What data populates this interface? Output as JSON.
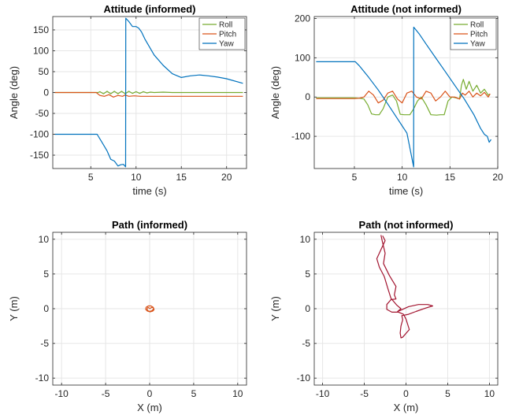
{
  "colors": {
    "roll": "#77ac30",
    "pitch": "#d95319",
    "yaw": "#0072bd",
    "path_informed": "#d95319",
    "path_not_informed": "#a2142f",
    "grid": "#e6e6e6",
    "axes": "#262626"
  },
  "chart_data": [
    {
      "type": "line",
      "title": "Attitude (informed)",
      "xlabel": "time (s)",
      "ylabel": "Angle (deg)",
      "xlim": [
        0.8,
        22.2
      ],
      "ylim": [
        -182,
        182
      ],
      "xticks": [
        5,
        10,
        15,
        20
      ],
      "yticks": [
        -150,
        -100,
        -50,
        0,
        50,
        100,
        150
      ],
      "grid": true,
      "legend": "top-right",
      "series": [
        {
          "name": "Roll",
          "x": [
            1,
            5.8,
            6.0,
            6.4,
            6.8,
            7.2,
            7.6,
            8.0,
            8.4,
            8.8,
            9.2,
            9.6,
            10.0,
            10.4,
            10.8,
            11.2,
            11.6,
            12,
            13,
            14,
            16,
            18,
            20,
            21.8
          ],
          "y": [
            0,
            0,
            2,
            -3,
            3,
            -3,
            3,
            -3,
            3,
            -3,
            3,
            -2,
            2,
            -2,
            2,
            -1,
            1,
            0,
            1,
            0,
            0,
            0,
            0,
            0
          ]
        },
        {
          "name": "Pitch",
          "x": [
            1,
            5.6,
            6.0,
            6.5,
            7.0,
            7.5,
            8.0,
            8.5,
            8.8,
            9.2,
            9.8,
            10.5,
            12,
            14,
            16,
            18,
            20,
            21.8
          ],
          "y": [
            0,
            0,
            -7,
            -9,
            -5,
            -11,
            -7,
            -9,
            -6,
            -9,
            -8,
            -9,
            -9,
            -9,
            -9,
            -9,
            -9,
            -9
          ]
        },
        {
          "name": "Yaw",
          "x": [
            1,
            5.4,
            5.7,
            6.2,
            6.8,
            7.2,
            7.6,
            8.0,
            8.3,
            8.6,
            8.85,
            8.86,
            9.2,
            9.6,
            10.0,
            10.3,
            10.6,
            11.0,
            12.0,
            13.0,
            14.0,
            15.0,
            16.0,
            17.0,
            18.0,
            19.0,
            20.0,
            21.8
          ],
          "y": [
            -100,
            -100,
            -100,
            -118,
            -140,
            -160,
            -164,
            -176,
            -173,
            -172,
            -178,
            178,
            170,
            158,
            158,
            154,
            145,
            127,
            90,
            65,
            45,
            36,
            40,
            42,
            40,
            37,
            33,
            22
          ]
        }
      ]
    },
    {
      "type": "line",
      "title": "Attitude (not informed)",
      "xlabel": "time (s)",
      "ylabel": "Angle (deg)",
      "xlim": [
        0.8,
        20.0
      ],
      "ylim": [
        -182,
        205
      ],
      "xticks": [
        5,
        10,
        15,
        20
      ],
      "yticks": [
        -100,
        0,
        100,
        200
      ],
      "grid": true,
      "legend": "top-right",
      "series": [
        {
          "name": "Roll",
          "x": [
            1,
            5.0,
            5.5,
            6.0,
            6.4,
            6.8,
            7.2,
            7.6,
            8.0,
            8.5,
            9.0,
            9.4,
            9.8,
            10.2,
            10.8,
            11.2,
            11.6,
            12.0,
            12.5,
            13.0,
            13.6,
            14.0,
            14.4,
            14.8,
            15.2,
            15.6,
            16.0,
            16.2,
            16.4,
            16.7,
            17.0,
            17.4,
            17.8,
            18.2,
            18.6,
            19.0,
            19.2
          ],
          "y": [
            -2,
            -2,
            -3,
            -5,
            -20,
            -43,
            -45,
            -45,
            -30,
            0,
            5,
            -10,
            -44,
            -45,
            -45,
            -30,
            -10,
            0,
            -20,
            -45,
            -46,
            -45,
            -45,
            -10,
            0,
            -2,
            -5,
            30,
            45,
            20,
            40,
            15,
            30,
            10,
            20,
            5,
            8
          ]
        },
        {
          "name": "Pitch",
          "x": [
            1,
            5.0,
            5.5,
            6.0,
            6.5,
            7.0,
            7.5,
            8.0,
            8.5,
            9.0,
            9.5,
            10.0,
            10.5,
            11.0,
            11.5,
            12.0,
            12.5,
            13.0,
            13.5,
            14.0,
            14.5,
            15.0,
            15.5,
            16.0,
            16.3,
            16.6,
            17.0,
            17.4,
            17.8,
            18.2,
            18.6,
            19.0,
            19.2
          ],
          "y": [
            -4,
            -4,
            -3,
            0,
            15,
            5,
            -15,
            -8,
            10,
            15,
            -5,
            -15,
            10,
            15,
            0,
            -5,
            15,
            10,
            -10,
            0,
            15,
            0,
            0,
            -5,
            10,
            5,
            15,
            0,
            10,
            3,
            12,
            0,
            8
          ]
        },
        {
          "name": "Yaw",
          "x": [
            1,
            5.1,
            5.5,
            6.5,
            7.5,
            8.5,
            9.5,
            10.5,
            11.2,
            11.21,
            11.8,
            12.5,
            13.5,
            14.5,
            15.5,
            16.5,
            17.5,
            18.2,
            18.6,
            18.9,
            19.1,
            19.3
          ],
          "y": [
            90,
            90,
            80,
            50,
            18,
            -18,
            -55,
            -92,
            -178,
            178,
            160,
            135,
            100,
            65,
            30,
            -5,
            -45,
            -80,
            -95,
            -100,
            -115,
            -108
          ]
        }
      ]
    },
    {
      "type": "line",
      "title": "Path (informed)",
      "xlabel": "X (m)",
      "ylabel": "Y (m)",
      "xlim": [
        -11,
        11
      ],
      "ylim": [
        -11,
        11
      ],
      "xticks": [
        -10,
        -5,
        0,
        5,
        10
      ],
      "yticks": [
        -10,
        -5,
        0,
        5,
        10
      ],
      "grid": true,
      "series": [
        {
          "x": [
            0.0,
            0.25,
            0.45,
            0.5,
            0.35,
            0.05,
            -0.25,
            -0.45,
            -0.4,
            -0.15,
            0.15,
            0.4,
            0.45,
            0.25,
            0.0,
            -0.2,
            -0.3,
            -0.2,
            0.0
          ],
          "y": [
            0.0,
            0.2,
            0.1,
            -0.15,
            -0.35,
            -0.45,
            -0.35,
            -0.1,
            0.2,
            0.4,
            0.4,
            0.2,
            -0.05,
            -0.3,
            -0.4,
            -0.3,
            -0.05,
            0.2,
            0.05
          ]
        }
      ]
    },
    {
      "type": "line",
      "title": "Path (not informed)",
      "xlabel": "X (m)",
      "ylabel": "Y (m)",
      "xlim": [
        -11,
        11
      ],
      "ylim": [
        -11,
        11
      ],
      "xticks": [
        -10,
        -5,
        0,
        5,
        10
      ],
      "yticks": [
        -10,
        -5,
        0,
        5,
        10
      ],
      "grid": true,
      "series": [
        {
          "x": [
            -2.8,
            -2.5,
            -3.0,
            -3.5,
            -3.2,
            -2.6,
            -2.2,
            -1.8,
            -1.1,
            -0.6,
            -1.0,
            -0.6,
            0.3,
            1.5,
            2.6,
            3.2,
            2.4,
            1.2,
            0.3,
            -0.5,
            -0.4,
            -0.6,
            -0.7,
            -0.6,
            -0.4,
            0.4,
            0.0,
            -0.3,
            -0.9,
            -1.7,
            -2.3,
            -2.3,
            -1.8,
            -1.2,
            -1.4,
            -1.2,
            -2.0,
            -2.7,
            -2.5,
            -2.8,
            -3.0
          ],
          "y": [
            10.5,
            9.8,
            8.5,
            7.2,
            6.0,
            4.6,
            3.0,
            1.5,
            0.5,
            0.0,
            -0.4,
            -0.2,
            0.3,
            0.6,
            0.6,
            0.4,
            0.1,
            -0.4,
            -0.8,
            -1.0,
            -1.6,
            -2.5,
            -3.5,
            -4.2,
            -4.1,
            -3.0,
            -1.5,
            -0.8,
            -0.5,
            -0.5,
            -0.1,
            0.6,
            1.3,
            1.4,
            2.0,
            3.2,
            4.8,
            6.5,
            8.0,
            9.5,
            10.6
          ]
        }
      ]
    }
  ]
}
